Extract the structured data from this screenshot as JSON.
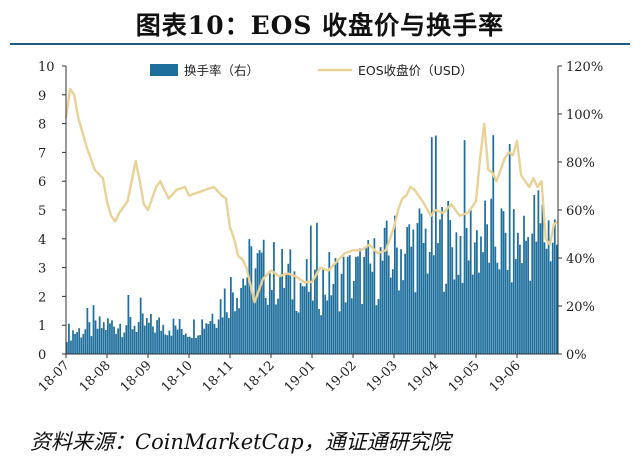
{
  "header": {
    "title": "图表10：EOS 收盘价与换手率"
  },
  "source": "资料来源：CoinMarketCap，通证通研究院",
  "colors": {
    "turnover": "#1f6f9d",
    "price": "#ead296",
    "title_rule": "#1f5a85"
  },
  "chart_data": {
    "type": "bar+line",
    "legend": [
      "换手率（右）",
      "EOS收盘价（USD）"
    ],
    "legend_position": "top",
    "x_tick_labels": [
      "18-07",
      "18-08",
      "18-09",
      "18-10",
      "18-11",
      "18-12",
      "19-01",
      "19-02",
      "19-03",
      "19-04",
      "19-05",
      "19-06"
    ],
    "y_left": {
      "range": [
        0,
        10
      ],
      "ticks": [
        "0",
        "1",
        "2",
        "3",
        "4",
        "5",
        "6",
        "7",
        "8",
        "9",
        "10"
      ]
    },
    "y_right": {
      "range": [
        0,
        120
      ],
      "unit": "%",
      "ticks": [
        "0%",
        "20%",
        "40%",
        "60%",
        "80%",
        "100%",
        "120%"
      ]
    },
    "grid": false,
    "series": [
      {
        "name": "EOS收盘价（USD）",
        "type": "line",
        "axis": "left",
        "x_month_index": [
          0.0,
          0.1,
          0.2,
          0.3,
          0.5,
          0.7,
          0.9,
          1.0,
          1.1,
          1.2,
          1.3,
          1.5,
          1.7,
          1.8,
          1.9,
          2.0,
          2.1,
          2.2,
          2.3,
          2.5,
          2.7,
          2.9,
          3.0,
          3.2,
          3.4,
          3.6,
          3.8,
          3.9,
          4.0,
          4.1,
          4.2,
          4.3,
          4.4,
          4.5,
          4.6,
          4.8,
          5.0,
          5.2,
          5.4,
          5.6,
          5.8,
          6.0,
          6.2,
          6.4,
          6.6,
          6.8,
          7.0,
          7.2,
          7.4,
          7.6,
          7.8,
          8.0,
          8.1,
          8.2,
          8.3,
          8.4,
          8.5,
          8.7,
          8.9,
          9.0,
          9.2,
          9.4,
          9.6,
          9.8,
          10.0,
          10.1,
          10.2,
          10.3,
          10.4,
          10.5,
          10.6,
          10.7,
          10.8,
          10.9,
          11.0,
          11.1,
          11.2,
          11.3,
          11.4,
          11.5,
          11.6,
          11.7,
          11.8,
          11.9,
          12.0
        ],
        "values": [
          8.2,
          9.2,
          9.0,
          8.2,
          7.2,
          6.4,
          6.1,
          5.3,
          4.8,
          4.6,
          4.9,
          5.3,
          6.7,
          6.0,
          5.2,
          5.0,
          5.4,
          5.8,
          6.0,
          5.4,
          5.7,
          5.8,
          5.5,
          5.6,
          5.7,
          5.8,
          5.5,
          5.4,
          4.4,
          4.0,
          3.4,
          3.3,
          3.0,
          2.4,
          1.8,
          2.6,
          2.9,
          2.7,
          2.8,
          2.7,
          2.5,
          2.5,
          3.0,
          2.9,
          3.2,
          3.5,
          3.6,
          3.6,
          3.8,
          3.5,
          3.6,
          4.4,
          5.0,
          5.4,
          5.5,
          5.8,
          5.7,
          5.3,
          4.8,
          5.0,
          4.9,
          5.2,
          4.8,
          4.9,
          5.3,
          6.8,
          8.0,
          6.4,
          6.3,
          6.0,
          6.4,
          6.8,
          7.0,
          6.9,
          7.4,
          6.2,
          6.0,
          5.8,
          6.1,
          5.8,
          6.0,
          4.0,
          3.8,
          4.5,
          4.6
        ]
      },
      {
        "name": "换手率（右）",
        "type": "bar",
        "axis": "right",
        "x_month_index": [
          0.0,
          0.5,
          1.0,
          1.5,
          2.0,
          2.5,
          3.0,
          3.5,
          4.0,
          4.5,
          5.0,
          5.5,
          6.0,
          6.5,
          7.0,
          7.5,
          8.0,
          8.5,
          9.0,
          9.5,
          10.0,
          10.5,
          11.0,
          11.5,
          12.0
        ],
        "values": [
          9,
          10,
          12,
          13,
          12,
          12,
          10,
          15,
          26,
          35,
          34,
          31,
          28,
          31,
          32,
          35,
          42,
          45,
          48,
          46,
          48,
          48,
          45,
          52,
          50
        ]
      }
    ]
  }
}
